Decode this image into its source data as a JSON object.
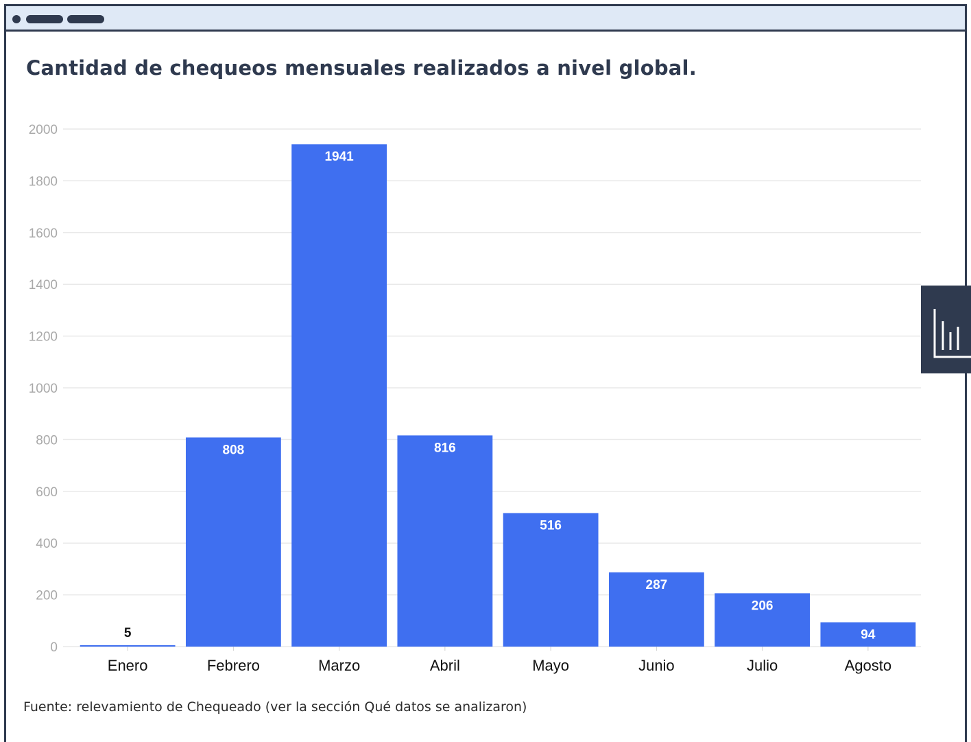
{
  "title": "Cantidad de chequeos mensuales realizados a nivel global.",
  "source": "Fuente: relevamiento de Chequeado (ver la sección Qué datos se analizaron)",
  "colors": {
    "bar": "#3f6ff0",
    "frame": "#2f3a4f",
    "topbar": "#dfe9f6"
  },
  "side_tab_icon": "bar-chart-icon",
  "chart_data": {
    "type": "bar",
    "title": "Cantidad de chequeos mensuales realizados a nivel global.",
    "categories": [
      "Enero",
      "Febrero",
      "Marzo",
      "Abril",
      "Mayo",
      "Junio",
      "Julio",
      "Agosto"
    ],
    "values": [
      5,
      808,
      1941,
      816,
      516,
      287,
      206,
      94
    ],
    "data_labels": [
      "5",
      "808",
      "1941",
      "816",
      "516",
      "287",
      "206",
      "94"
    ],
    "ylim": [
      0,
      2000
    ],
    "yticks": [
      0,
      200,
      400,
      600,
      800,
      1000,
      1200,
      1400,
      1600,
      1800,
      2000
    ],
    "xlabel": "",
    "ylabel": "",
    "grid": true,
    "legend": "none"
  }
}
